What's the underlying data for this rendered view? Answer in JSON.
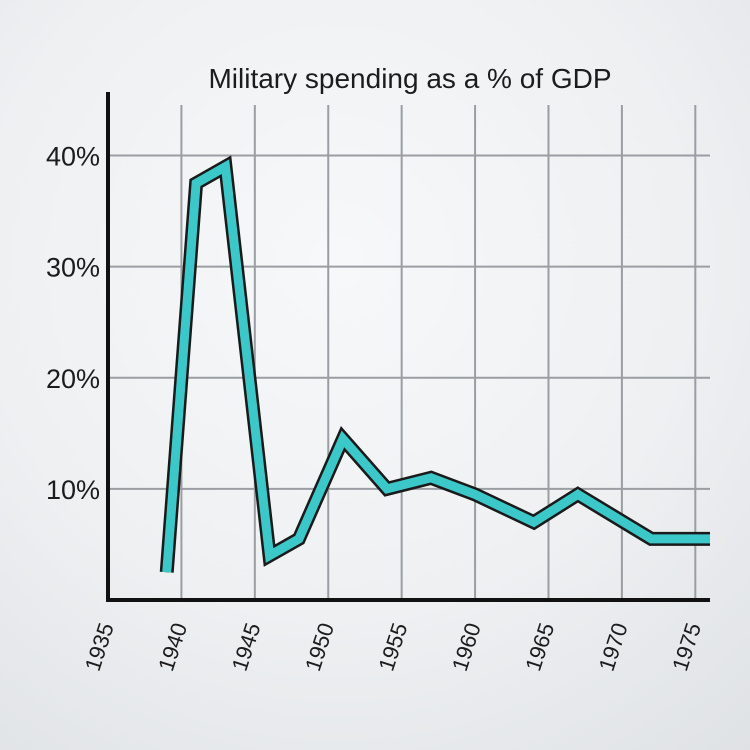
{
  "chart_data": {
    "type": "line",
    "title": "Military spending as a % of GDP",
    "xlabel": "",
    "ylabel": "",
    "xlim": [
      1935,
      1976
    ],
    "ylim": [
      0,
      45
    ],
    "x_ticks": [
      "1935",
      "1940",
      "1945",
      "1950",
      "1955",
      "1960",
      "1965",
      "1970",
      "1975"
    ],
    "y_ticks": [
      "10%",
      "20%",
      "30%",
      "40%"
    ],
    "grid": true,
    "line_color": "#3cc7c9",
    "x": [
      1939,
      1941,
      1943,
      1946,
      1948,
      1951,
      1954,
      1957,
      1960,
      1964,
      1967,
      1972,
      1976
    ],
    "y": [
      2.5,
      37.5,
      39.0,
      4.0,
      5.5,
      14.5,
      10.0,
      11.0,
      9.5,
      7.0,
      9.5,
      5.5,
      5.5
    ]
  }
}
